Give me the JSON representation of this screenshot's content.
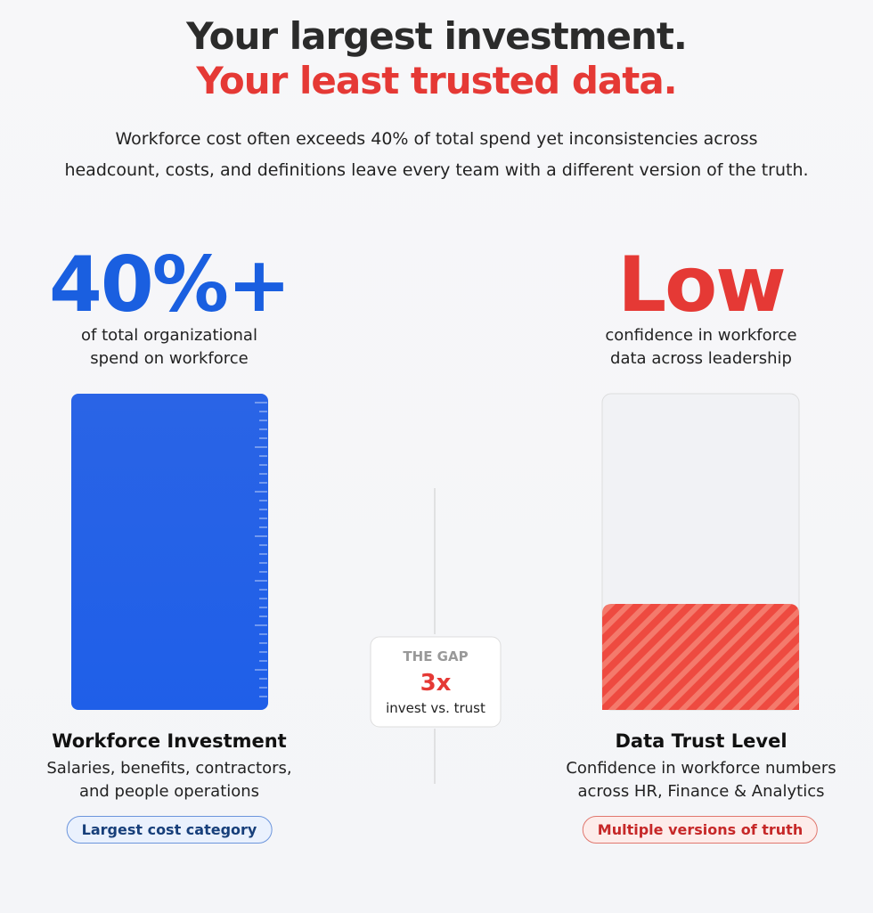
{
  "header": {
    "title_line1": "Your largest investment.",
    "title_line2": "Your least trusted data.",
    "description": [
      "Workforce cost often exceeds 40% of total spend yet inconsistencies across",
      "headcount, costs, and definitions leave every team with a different version of the truth."
    ]
  },
  "left": {
    "stat": "40%+",
    "caption": [
      "of total organizational",
      "spend on workforce"
    ],
    "title": "Workforce Investment",
    "description": [
      "Salaries, benefits, contractors,",
      "and people operations"
    ],
    "badge": "Largest cost category"
  },
  "gap": {
    "label": "THE GAP",
    "value": "3x",
    "caption": "invest vs. trust"
  },
  "right": {
    "stat": "Low",
    "caption": [
      "confidence in workforce",
      "data across leadership"
    ],
    "title": "Data Trust Level",
    "description": [
      "Confidence in workforce numbers",
      "across HR, Finance & Analytics"
    ],
    "badge": "Multiple versions of truth"
  }
}
